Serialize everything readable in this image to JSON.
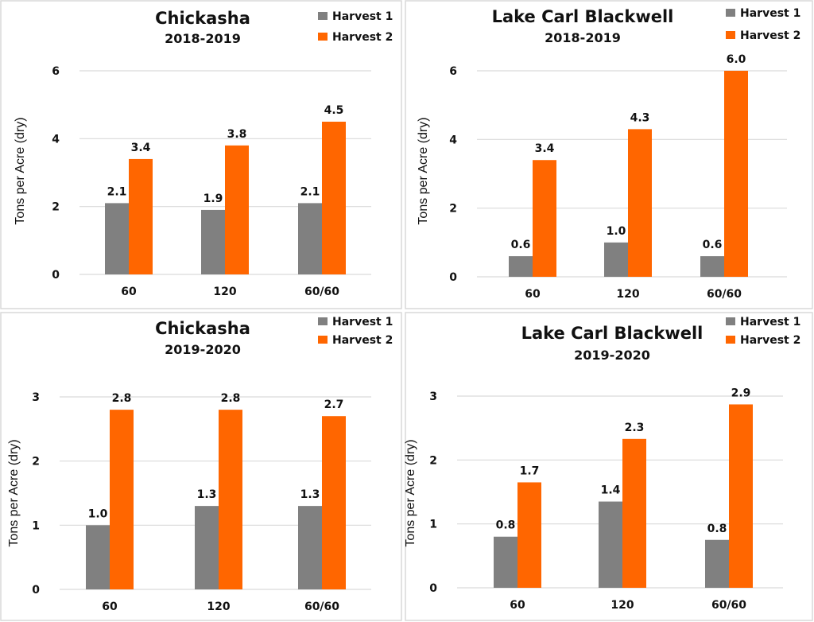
{
  "colors": {
    "harvest1": "#808080",
    "harvest2": "#FF6600",
    "grid": "#D9D9D9"
  },
  "chart_data": [
    {
      "type": "bar",
      "title": "Chickasha",
      "subtitle": "2018-2019",
      "ylabel": "Tons per Acre (dry)",
      "xlabel": "",
      "categories": [
        "60",
        "120",
        "60/60"
      ],
      "yticks": [
        "0",
        "2",
        "4",
        "6"
      ],
      "ylim": [
        0,
        6
      ],
      "grid": true,
      "legend": "top-right",
      "series": [
        {
          "name": "Harvest 1",
          "values": [
            2.1,
            1.9,
            2.1
          ],
          "labels": [
            "2.1",
            "1.9",
            "2.1"
          ]
        },
        {
          "name": "Harvest 2",
          "values": [
            3.4,
            3.8,
            4.5
          ],
          "labels": [
            "3.4",
            "3.8",
            "4.5"
          ]
        }
      ]
    },
    {
      "type": "bar",
      "title": "Lake Carl Blackwell",
      "subtitle": "2018-2019",
      "ylabel": "Tons per Acre (dry)",
      "xlabel": "",
      "categories": [
        "60",
        "120",
        "60/60"
      ],
      "yticks": [
        "0",
        "2",
        "4",
        "6"
      ],
      "ylim": [
        0,
        6
      ],
      "grid": true,
      "legend": "top-right",
      "series": [
        {
          "name": "Harvest 1",
          "values": [
            0.6,
            1.0,
            0.6
          ],
          "labels": [
            "0.6",
            "1.0",
            "0.6"
          ]
        },
        {
          "name": "Harvest 2",
          "values": [
            3.4,
            4.3,
            6.0
          ],
          "labels": [
            "3.4",
            "4.3",
            "6.0"
          ]
        }
      ]
    },
    {
      "type": "bar",
      "title": "Chickasha",
      "subtitle": "2019-2020",
      "ylabel": "Tons per Acre (dry)",
      "xlabel": "",
      "categories": [
        "60",
        "120",
        "60/60"
      ],
      "yticks": [
        "0",
        "1",
        "2",
        "3"
      ],
      "ylim": [
        0,
        3
      ],
      "grid": true,
      "legend": "top-right",
      "series": [
        {
          "name": "Harvest 1",
          "values": [
            1.0,
            1.3,
            1.3
          ],
          "labels": [
            "1.0",
            "1.3",
            "1.3"
          ]
        },
        {
          "name": "Harvest 2",
          "values": [
            2.8,
            2.8,
            2.7
          ],
          "labels": [
            "2.8",
            "2.8",
            "2.7"
          ]
        }
      ]
    },
    {
      "type": "bar",
      "title": "Lake Carl Blackwell",
      "subtitle": "2019-2020",
      "ylabel": "Tons per Acre (dry)",
      "xlabel": "",
      "categories": [
        "60",
        "120",
        "60/60"
      ],
      "yticks": [
        "0",
        "1",
        "2",
        "3"
      ],
      "ylim": [
        0,
        3
      ],
      "grid": true,
      "legend": "top-right",
      "series": [
        {
          "name": "Harvest 1",
          "values": [
            0.8,
            1.35,
            0.75
          ],
          "labels": [
            "0.8",
            "1.4",
            "0.8"
          ]
        },
        {
          "name": "Harvest 2",
          "values": [
            1.65,
            2.33,
            2.87
          ],
          "labels": [
            "1.7",
            "2.3",
            "2.9"
          ]
        }
      ]
    }
  ]
}
